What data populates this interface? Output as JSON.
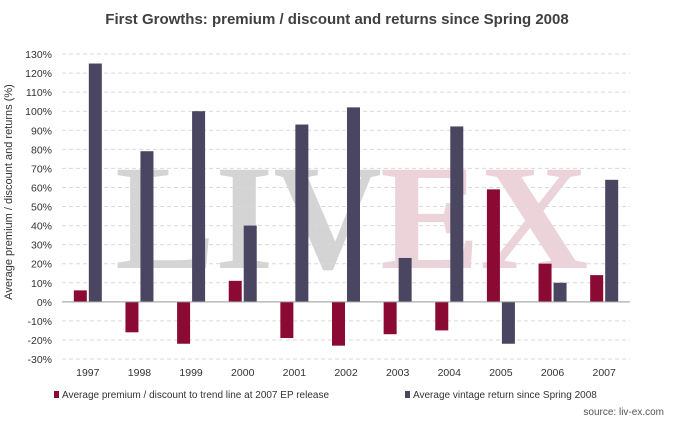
{
  "chart_data": {
    "type": "bar",
    "title": "First Growths: premium / discount and returns since Spring 2008",
    "ylabel": "Average premium / discount and returns (%)",
    "xlabel": "",
    "categories": [
      "1997",
      "1998",
      "1999",
      "2000",
      "2001",
      "2002",
      "2003",
      "2004",
      "2005",
      "2006",
      "2007"
    ],
    "series": [
      {
        "name": "Average premium / discount to trend line at 2007 EP release",
        "color": "#8b0a33",
        "values": [
          6,
          -16,
          -22,
          11,
          -19,
          -23,
          -17,
          -15,
          59,
          20,
          14
        ]
      },
      {
        "name": "Average vintage return since Spring 2008",
        "color": "#4a4560",
        "values": [
          125,
          79,
          100,
          40,
          93,
          102,
          23,
          92,
          -22,
          10,
          64
        ]
      }
    ],
    "ylim": [
      -30,
      130
    ],
    "yticks": [
      -30,
      -20,
      -10,
      0,
      10,
      20,
      30,
      40,
      50,
      60,
      70,
      80,
      90,
      100,
      110,
      120,
      130
    ],
    "ytick_labels": [
      "-30%",
      "-20%",
      "-10%",
      "0%",
      "10%",
      "20%",
      "30%",
      "40%",
      "50%",
      "60%",
      "70%",
      "80%",
      "90%",
      "100%",
      "110%",
      "120%",
      "130%"
    ],
    "grid": true,
    "legend_position": "bottom"
  },
  "watermark": {
    "left": "LIV",
    "right": "EX",
    "left_color": "#d4d4d4",
    "right_color": "#ecd3da"
  },
  "source": "source: liv-ex.com"
}
